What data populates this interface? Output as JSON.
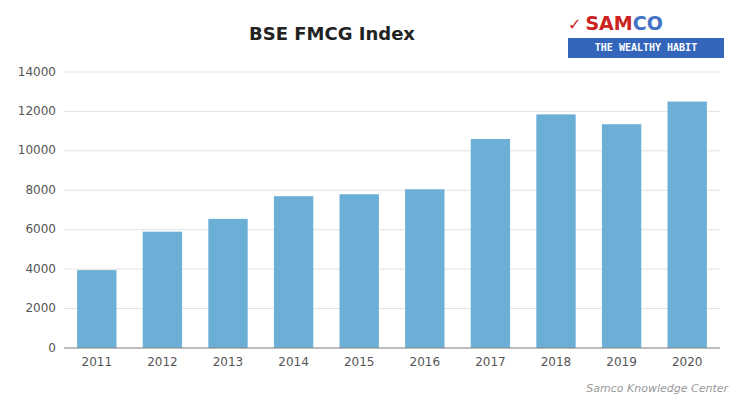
{
  "chart_data": {
    "type": "bar",
    "title": "BSE FMCG Index",
    "categories": [
      "2011",
      "2012",
      "2013",
      "2014",
      "2015",
      "2016",
      "2017",
      "2018",
      "2019",
      "2020"
    ],
    "values": [
      3950,
      5900,
      6550,
      7700,
      7800,
      8050,
      10600,
      11850,
      11350,
      12500
    ],
    "color": "#6baed6",
    "ylim": [
      0,
      14000
    ],
    "yticks": [
      0,
      2000,
      4000,
      6000,
      8000,
      10000,
      12000,
      14000
    ],
    "grid": true,
    "annotations": [
      {
        "text": "Samco Knowledge Center"
      },
      {
        "text": "✓",
        "color": "#cc2222"
      },
      {
        "text": "SAM",
        "color": "#cc2222"
      },
      {
        "text": "CO",
        "color": "#4472c4"
      },
      {
        "text": "THE WEALTHY HABIT",
        "color": "#3366bb"
      }
    ]
  }
}
